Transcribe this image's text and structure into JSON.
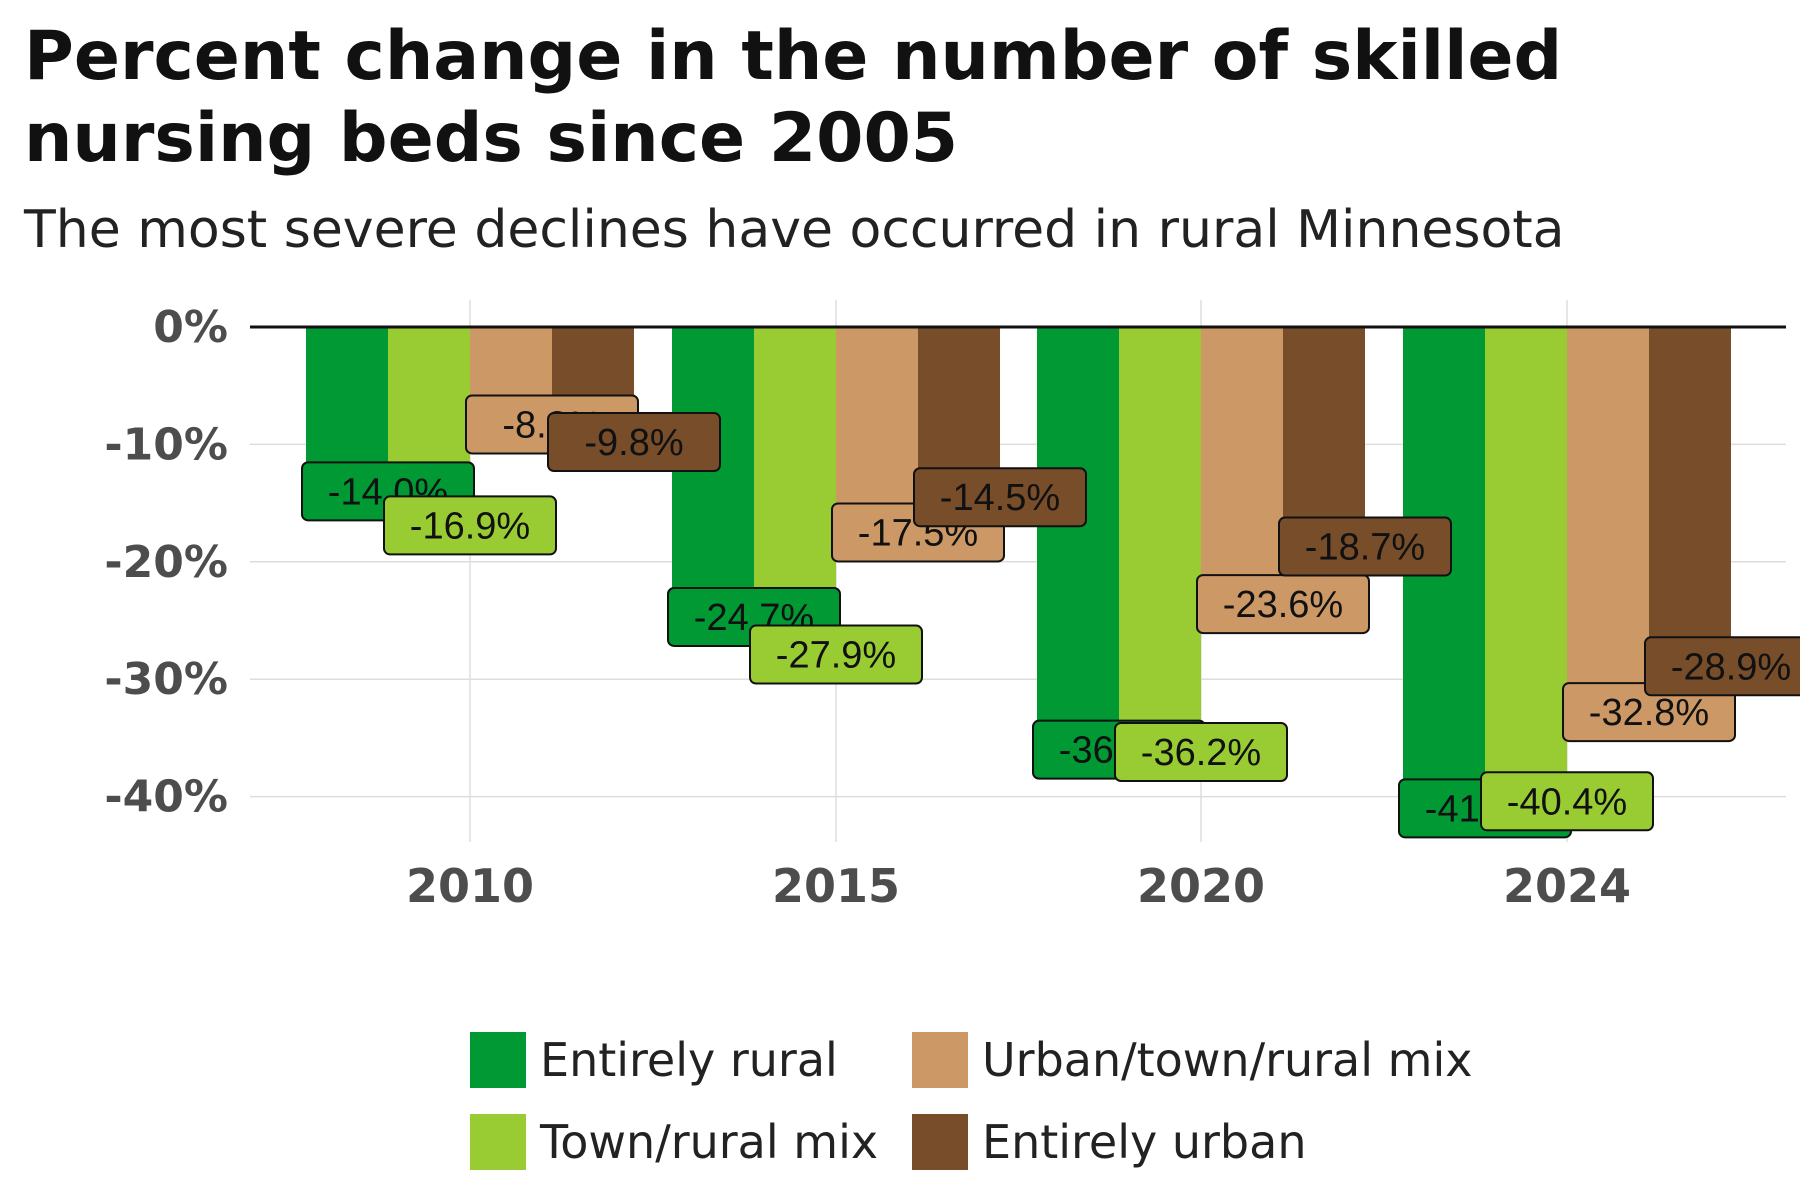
{
  "title": "Percent change in the number of skilled nursing beds since 2005",
  "subtitle": "The most severe declines have occurred in rural Minnesota",
  "chart_data": {
    "type": "bar",
    "title": "Percent change in the number of skilled nursing beds since 2005",
    "subtitle": "The most severe declines have occurred in rural Minnesota",
    "xlabel": "",
    "ylabel": "",
    "categories": [
      "2010",
      "2015",
      "2020",
      "2024"
    ],
    "series": [
      {
        "name": "Entirely rural",
        "color": "#009933",
        "values": [
          -14.0,
          -24.7,
          -36.0,
          -41.0
        ],
        "labels": [
          "-14.0%",
          "-24.7%",
          "-36.0%",
          "-41.0%"
        ]
      },
      {
        "name": "Town/rural mix",
        "color": "#99CC33",
        "values": [
          -16.9,
          -27.9,
          -36.2,
          -40.4
        ],
        "labels": [
          "-16.9%",
          "-27.9%",
          "-36.2%",
          "-40.4%"
        ]
      },
      {
        "name": "Urban/town/rural mix",
        "color": "#CC9966",
        "values": [
          -8.3,
          -17.5,
          -23.6,
          -32.8
        ],
        "labels": [
          "-8.3%",
          "-17.5%",
          "-23.6%",
          "-32.8%"
        ]
      },
      {
        "name": "Entirely urban",
        "color": "#774D2A",
        "values": [
          -9.8,
          -14.5,
          -18.7,
          -28.9
        ],
        "labels": [
          "-9.8%",
          "-14.5%",
          "-18.7%",
          "-28.9%"
        ]
      }
    ],
    "y_ticks": [
      0,
      -10,
      -20,
      -30,
      -40
    ],
    "y_tick_labels": [
      "0%",
      "-10%",
      "-20%",
      "-30%",
      "-40%"
    ],
    "ylim": [
      -44,
      0
    ],
    "grid": true,
    "legend_position": "bottom"
  }
}
